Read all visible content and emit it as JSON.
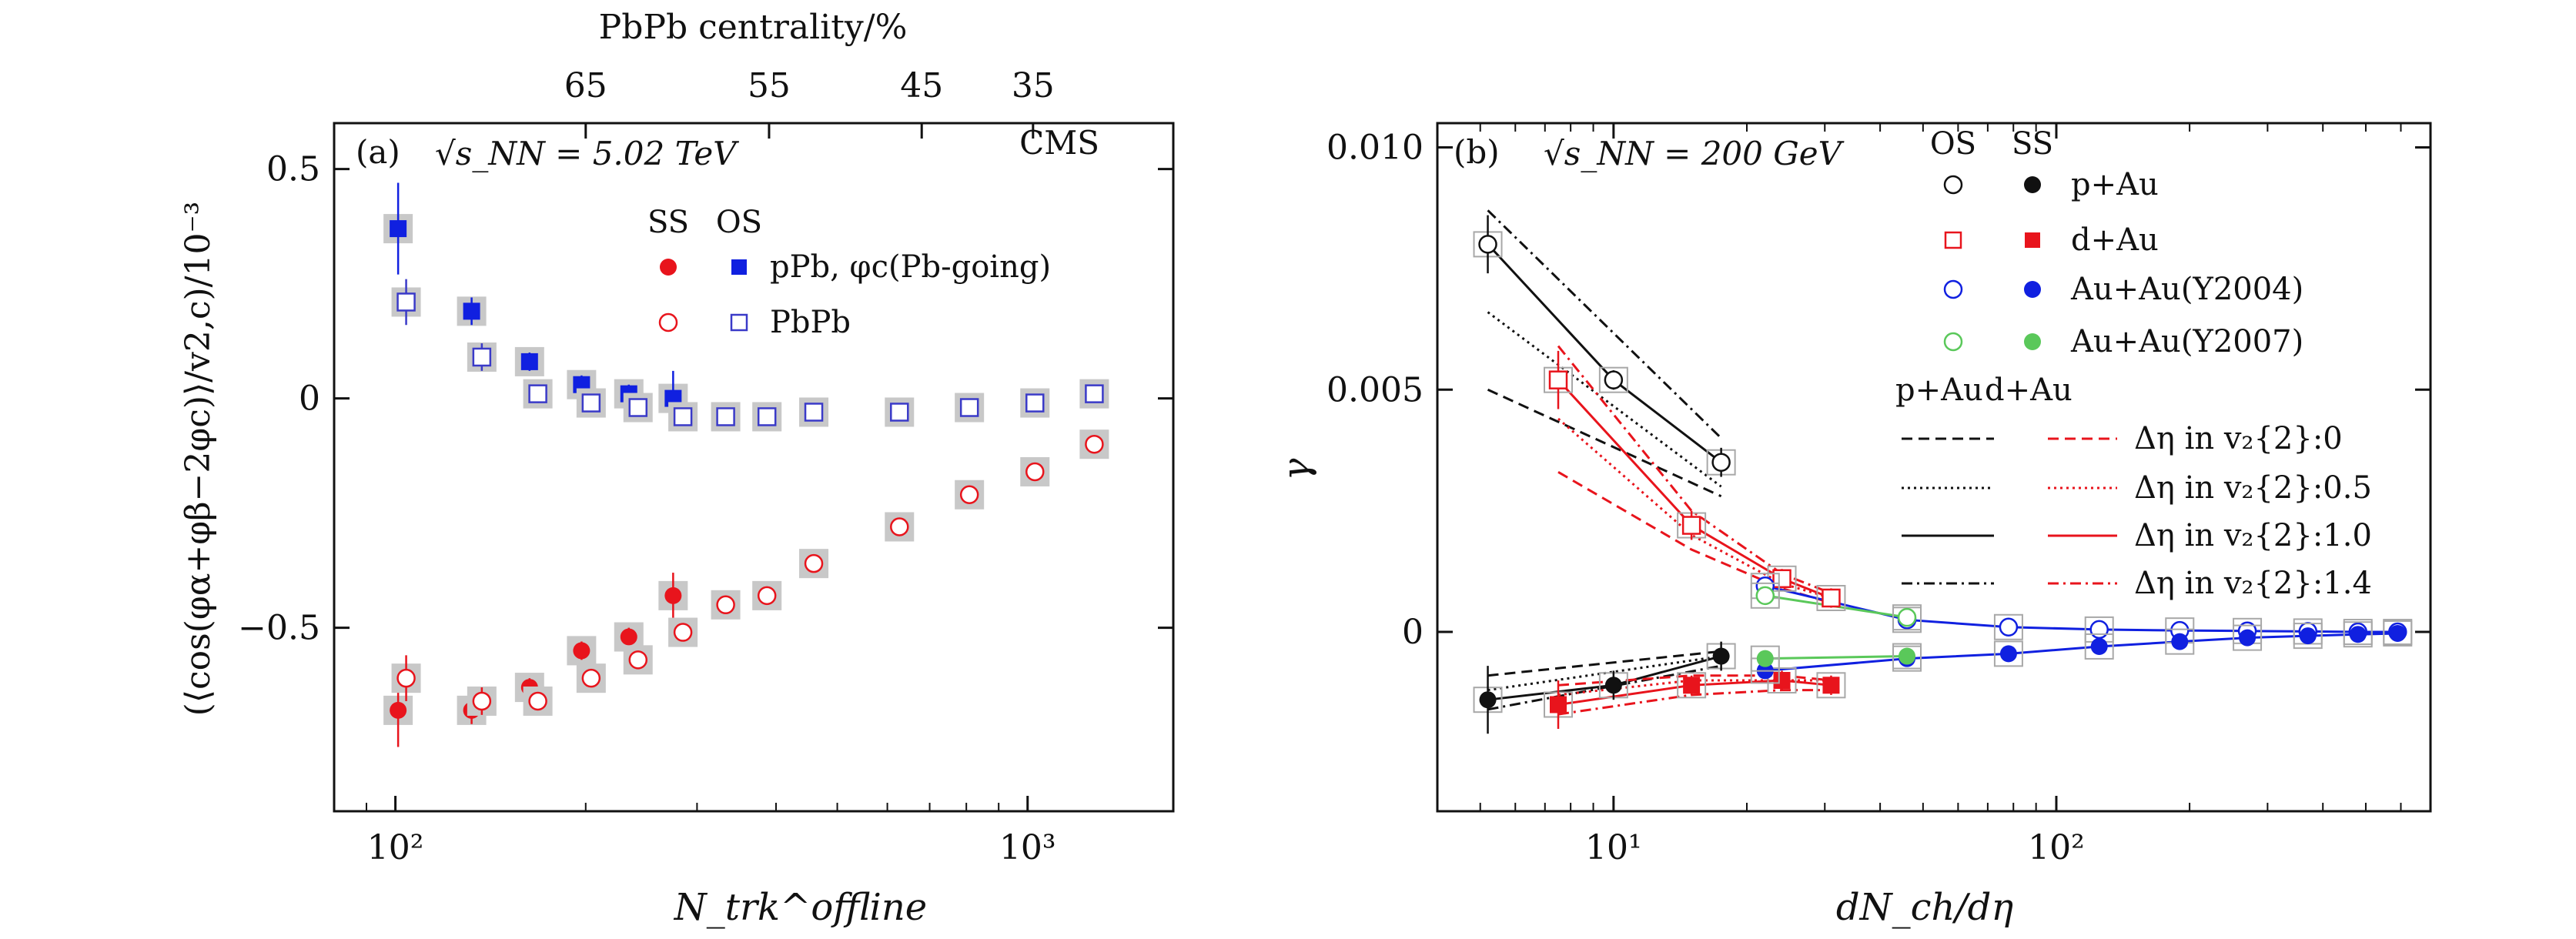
{
  "chart_data": [
    {
      "type": "scatter",
      "panel_label": "(a)",
      "energy_label": "√s_NN = 5.02 TeV",
      "experiment": "CMS",
      "xlabel": "N_trk^offline",
      "ylabel": "(⟨cos(φα+φβ−2φc)⟩/v2,c)/10⁻³",
      "x_scale": "log",
      "xlim": [
        80,
        1700
      ],
      "ylim": [
        -0.9,
        0.6
      ],
      "x_ticks": [
        "10²",
        "10³"
      ],
      "y_ticks": [
        "0.5",
        "0",
        "−0.5"
      ],
      "top_axis_label": "PbPb centrality/%",
      "top_ticks": [
        {
          "label": "65",
          "x": 200
        },
        {
          "label": "55",
          "x": 390
        },
        {
          "label": "45",
          "x": 680
        },
        {
          "label": "35",
          "x": 1020
        }
      ],
      "legend_headers": [
        "SS",
        "OS"
      ],
      "legend": [
        {
          "label": "pPb, φc(Pb-going)"
        },
        {
          "label": "PbPb"
        }
      ],
      "series": [
        {
          "name": "pPb SS",
          "color": "#e8141c",
          "marker": "filled-circle",
          "x": [
            101,
            132,
            163,
            197,
            234,
            275
          ],
          "y": [
            -0.68,
            -0.68,
            -0.63,
            -0.55,
            -0.52,
            -0.43
          ],
          "err": [
            0.08,
            0.03,
            0.02,
            0.02,
            0.02,
            0.05
          ]
        },
        {
          "name": "pPb OS",
          "color": "#1020e0",
          "marker": "filled-square",
          "x": [
            101,
            132,
            163,
            197,
            234,
            275
          ],
          "y": [
            0.37,
            0.19,
            0.08,
            0.03,
            0.01,
            0.0
          ],
          "err": [
            0.1,
            0.03,
            0.02,
            0.02,
            0.02,
            0.06
          ]
        },
        {
          "name": "PbPb SS",
          "color": "#e8141c",
          "marker": "open-circle",
          "x": [
            104,
            137,
            168,
            204,
            242,
            285,
            333,
            387,
            459,
            627,
            809,
            1027,
            1275
          ],
          "y": [
            -0.61,
            -0.66,
            -0.66,
            -0.61,
            -0.57,
            -0.51,
            -0.45,
            -0.43,
            -0.36,
            -0.28,
            -0.21,
            -0.16,
            -0.1
          ],
          "err": [
            0.05,
            0.03,
            0.02,
            0.02,
            0.02,
            0.02,
            0.02,
            0.02,
            0.01,
            0.01,
            0.01,
            0.01,
            0.01
          ]
        },
        {
          "name": "PbPb OS",
          "color": "#3a3ac8",
          "marker": "open-square",
          "x": [
            104,
            137,
            168,
            204,
            242,
            285,
            333,
            387,
            459,
            627,
            809,
            1027,
            1275
          ],
          "y": [
            0.21,
            0.09,
            0.01,
            -0.01,
            -0.02,
            -0.04,
            -0.04,
            -0.04,
            -0.03,
            -0.03,
            -0.02,
            -0.01,
            0.01
          ],
          "err": [
            0.05,
            0.03,
            0.02,
            0.02,
            0.02,
            0.02,
            0.02,
            0.02,
            0.01,
            0.01,
            0.01,
            0.01,
            0.01
          ]
        }
      ]
    },
    {
      "type": "scatter",
      "panel_label": "(b)",
      "energy_label": "√s_NN = 200 GeV",
      "xlabel": "dN_ch/dη",
      "ylabel": "γ",
      "x_scale": "log",
      "xlim": [
        4,
        700
      ],
      "ylim": [
        -0.0037,
        0.0105
      ],
      "x_ticks": [
        "10¹",
        "10²"
      ],
      "y_ticks": [
        "0.010",
        "0.005",
        "0"
      ],
      "legend_headers": [
        "OS",
        "SS"
      ],
      "legend": [
        {
          "label": "p+Au",
          "color": "#111111"
        },
        {
          "label": "d+Au",
          "color": "#e8141c"
        },
        {
          "label": "Au+Au(Y2004)",
          "color": "#1020e0"
        },
        {
          "label": "Au+Au(Y2007)",
          "color": "#5ac85a"
        }
      ],
      "line_legend_headers": [
        "p+Au",
        "d+Au"
      ],
      "line_legend": [
        {
          "label": "Δη in v₂{2}:0",
          "dash": "dashed"
        },
        {
          "label": "Δη in v₂{2}:0.5",
          "dash": "dotted"
        },
        {
          "label": "Δη in v₂{2}:1.0",
          "dash": "solid"
        },
        {
          "label": "Δη in v₂{2}:1.4",
          "dash": "dashdot"
        }
      ],
      "series": [
        {
          "name": "p+Au OS",
          "color": "#111111",
          "marker": "open-circle",
          "x": [
            5.2,
            10,
            17.5
          ],
          "y": [
            0.008,
            0.0052,
            0.0035
          ],
          "err": [
            0.0006,
            0.0002,
            0.0003
          ]
        },
        {
          "name": "p+Au SS",
          "color": "#111111",
          "marker": "filled-circle",
          "x": [
            5.2,
            10,
            17.5
          ],
          "y": [
            -0.0014,
            -0.0011,
            -0.0005
          ],
          "err": [
            0.0007,
            0.0003,
            0.0003
          ]
        },
        {
          "name": "d+Au OS",
          "color": "#e8141c",
          "marker": "open-square",
          "x": [
            7.5,
            15,
            24,
            31
          ],
          "y": [
            0.0052,
            0.0022,
            0.0011,
            0.0007
          ],
          "err": [
            0.0006,
            0.0003,
            0.0002,
            0.0002
          ]
        },
        {
          "name": "d+Au SS",
          "color": "#e8141c",
          "marker": "filled-square",
          "x": [
            7.5,
            15,
            24,
            31
          ],
          "y": [
            -0.0015,
            -0.0011,
            -0.001,
            -0.0011
          ],
          "err": [
            0.0005,
            0.0002,
            0.0002,
            0.0002
          ]
        },
        {
          "name": "Au+Au(Y2004) OS",
          "color": "#1020e0",
          "marker": "open-circle",
          "x": [
            22,
            46,
            78,
            125,
            190,
            270,
            370,
            480,
            590
          ],
          "y": [
            0.00095,
            0.00025,
            0.0001,
            5e-05,
            3e-05,
            2e-05,
            1e-05,
            0.0,
            0.0
          ],
          "err": [
            0.0001,
            5e-05,
            3e-05,
            3e-05,
            2e-05,
            2e-05,
            2e-05,
            2e-05,
            2e-05
          ]
        },
        {
          "name": "Au+Au(Y2004) SS",
          "color": "#1020e0",
          "marker": "filled-circle",
          "x": [
            22,
            46,
            78,
            125,
            190,
            270,
            370,
            480,
            590
          ],
          "y": [
            -0.0008,
            -0.00055,
            -0.00045,
            -0.0003,
            -0.0002,
            -0.00012,
            -8e-05,
            -5e-05,
            -3e-05
          ],
          "err": [
            0.0001,
            5e-05,
            3e-05,
            3e-05,
            2e-05,
            2e-05,
            2e-05,
            2e-05,
            2e-05
          ]
        },
        {
          "name": "Au+Au(Y2007) OS",
          "color": "#5ac85a",
          "marker": "open-circle",
          "x": [
            22,
            46
          ],
          "y": [
            0.00075,
            0.0003
          ],
          "err": [
            0.0001,
            5e-05
          ]
        },
        {
          "name": "Au+Au(Y2007) SS",
          "color": "#5ac85a",
          "marker": "filled-circle",
          "x": [
            22,
            46
          ],
          "y": [
            -0.00055,
            -0.0005
          ],
          "err": [
            0.0001,
            5e-05
          ]
        }
      ]
    }
  ]
}
